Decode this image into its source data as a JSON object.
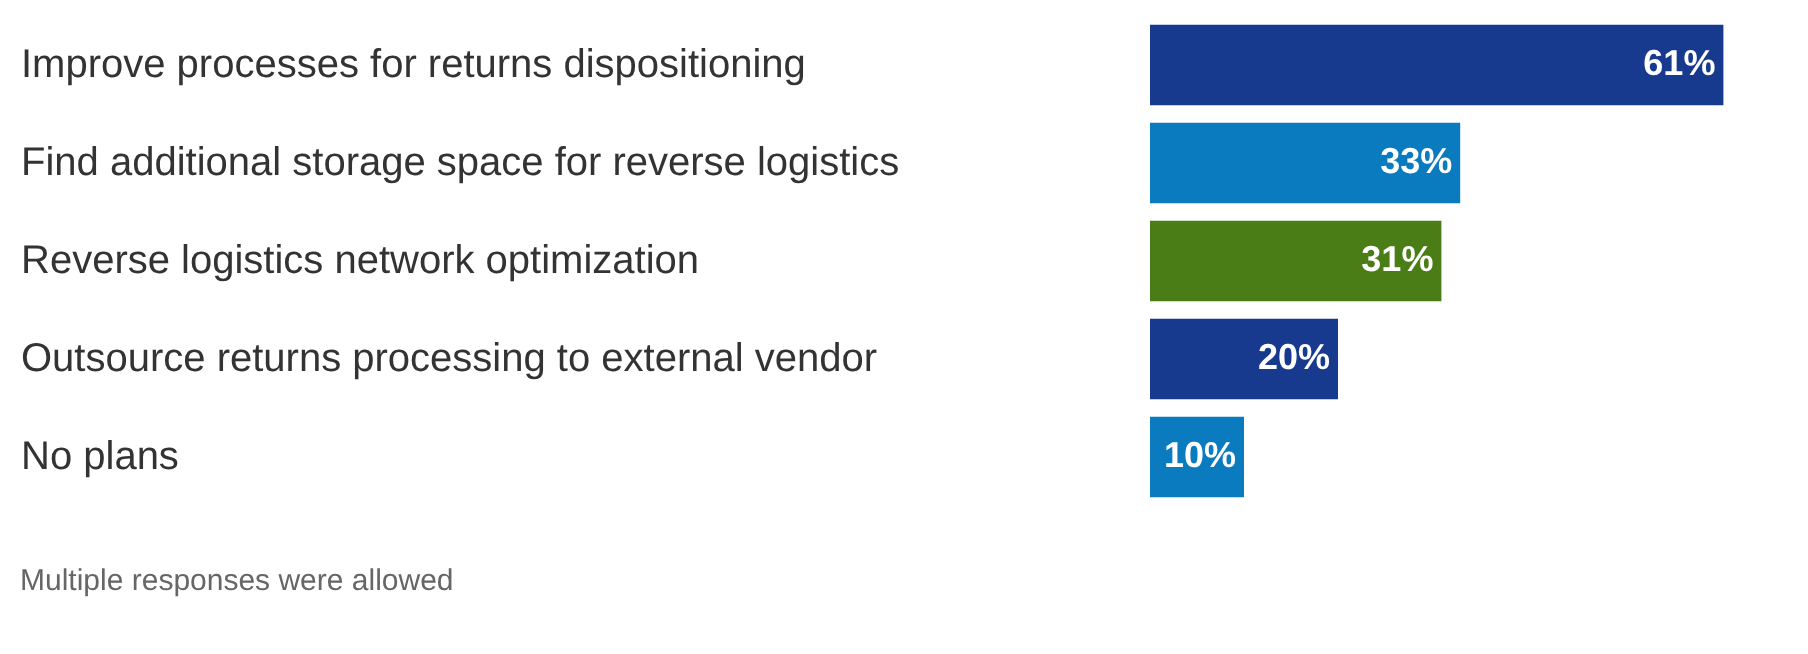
{
  "chart_data": {
    "type": "bar",
    "orientation": "horizontal",
    "categories": [
      "Improve processes for returns dispositioning",
      "Find additional storage space for reverse logistics",
      "Reverse logistics network optimization",
      "Outsource returns processing to external vendor",
      "No plans"
    ],
    "values": [
      61,
      33,
      31,
      20,
      10
    ],
    "colors": [
      "#173a8e",
      "#0a7bbf",
      "#4b7d17",
      "#173a8e",
      "#0a7bbf"
    ],
    "value_labels": [
      "61%",
      "33%",
      "31%",
      "20%",
      "10%"
    ],
    "xlim": [
      0,
      70
    ],
    "tick_labels": "y",
    "annotations": [
      "Multiple responses were allowed"
    ]
  }
}
